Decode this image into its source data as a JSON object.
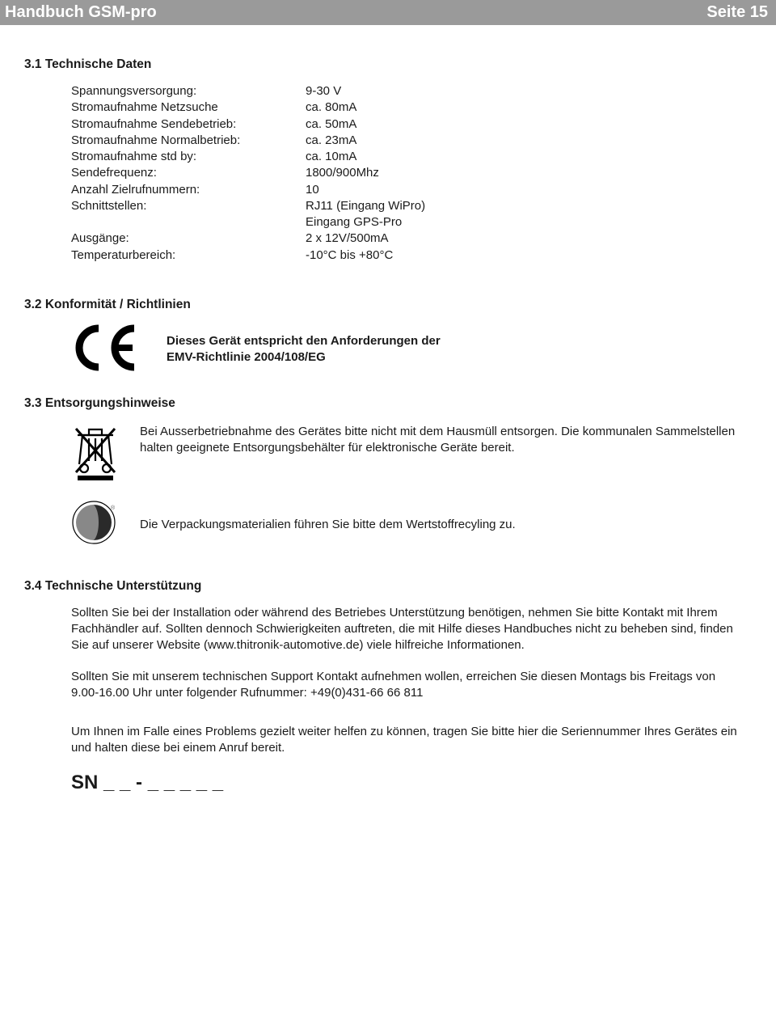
{
  "header": {
    "title": "Handbuch GSM-pro",
    "page": "Seite 15"
  },
  "sections": {
    "tech_data": {
      "heading": "3.1 Technische Daten",
      "rows": [
        {
          "label": "Spannungsversorgung:",
          "value": "9-30 V"
        },
        {
          "label": "Stromaufnahme Netzsuche",
          "value": "ca. 80mA"
        },
        {
          "label": "Stromaufnahme Sendebetrieb:",
          "value": "ca. 50mA"
        },
        {
          "label": "Stromaufnahme Normalbetrieb:",
          "value": "ca. 23mA"
        },
        {
          "label": "Stromaufnahme std by:",
          "value": "ca. 10mA"
        },
        {
          "label": "Sendefrequenz:",
          "value": "1800/900Mhz"
        },
        {
          "label": "Anzahl Zielrufnummern:",
          "value": "10"
        },
        {
          "label": "Schnittstellen:",
          "value": "RJ11 (Eingang WiPro)"
        },
        {
          "label": "",
          "value": "Eingang GPS-Pro"
        },
        {
          "label": "Ausgänge:",
          "value": "2 x 12V/500mA"
        },
        {
          "label": "Temperaturbereich:",
          "value": "-10°C bis +80°C"
        }
      ]
    },
    "conformity": {
      "heading": "3.2 Konformität / Richtlinien",
      "text_line1": "Dieses Gerät entspricht den Anforderungen der",
      "text_line2": "EMV-Richtlinie 2004/108/EG"
    },
    "disposal": {
      "heading": "3.3 Entsorgungshinweise",
      "text1": "Bei Ausserbetriebnahme des Gerätes bitte nicht mit dem Hausmüll entsorgen. Die kommunalen Sammelstellen halten geeignete Entsorgungsbehälter für elektronische Geräte bereit.",
      "text2": "Die Verpackungsmaterialien führen Sie bitte dem Wertstoffrecyling zu."
    },
    "support": {
      "heading": "3.4 Technische Unterstützung",
      "p1": "Sollten Sie bei der Installation oder während des Betriebes Unterstützung benötigen, nehmen Sie bitte Kontakt mit Ihrem Fachhändler auf. Sollten dennoch Schwierigkeiten auftreten, die mit Hilfe dieses Handbuches nicht zu beheben sind, finden Sie auf unserer Website (www.thitronik-automotive.de) viele hilfreiche Informationen.",
      "p2": "Sollten Sie mit unserem technischen Support Kontakt aufnehmen wollen, erreichen Sie diesen Montags bis Freitags von 9.00-16.00 Uhr unter folgender Rufnummer: +49(0)431-66 66 811",
      "p3": "Um Ihnen im Falle eines Problems gezielt weiter helfen zu können, tragen Sie bitte hier die Seriennummer Ihres Gerätes ein und halten diese bei einem Anruf bereit."
    },
    "serial": {
      "label": "SN _ _ - _ _ _ _ _"
    }
  },
  "colors": {
    "header_bg": "#9a9a9a",
    "header_text": "#ffffff",
    "body_text": "#1a1a1a"
  }
}
